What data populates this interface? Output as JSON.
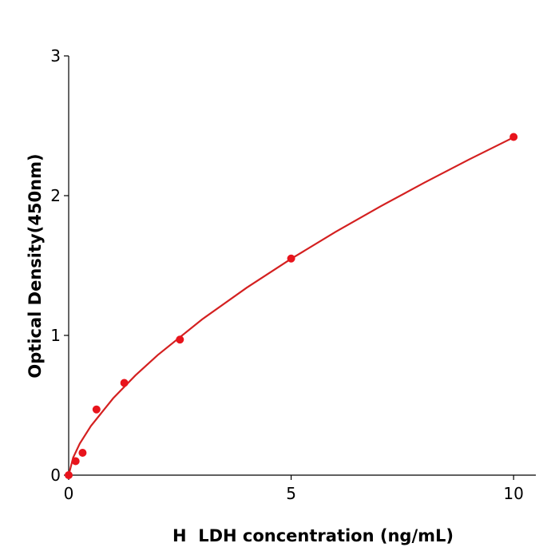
{
  "chart_data": {
    "type": "scatter",
    "x_label": "H  LDH concentration (ng/mL)",
    "y_label": "Optical Density(450nm)",
    "x": [
      0,
      0.156,
      0.3125,
      0.625,
      1.25,
      2.5,
      5,
      10
    ],
    "values": [
      0.0,
      0.1,
      0.16,
      0.47,
      0.66,
      0.97,
      1.55,
      2.42
    ],
    "color": "#e8141c",
    "curve": {
      "x": [
        0,
        0.1,
        0.25,
        0.5,
        1,
        1.5,
        2,
        3,
        4,
        5,
        6,
        7,
        8,
        9,
        10
      ],
      "values": [
        0,
        0.125,
        0.226,
        0.352,
        0.55,
        0.714,
        0.859,
        1.115,
        1.341,
        1.548,
        1.741,
        1.922,
        2.094,
        2.259,
        2.417
      ],
      "color": "#d42020"
    },
    "xlim": [
      0,
      10.5
    ],
    "ylim": [
      0,
      3
    ],
    "xticks": [
      0,
      5,
      10
    ],
    "yticks": [
      0,
      1,
      2,
      3
    ]
  }
}
